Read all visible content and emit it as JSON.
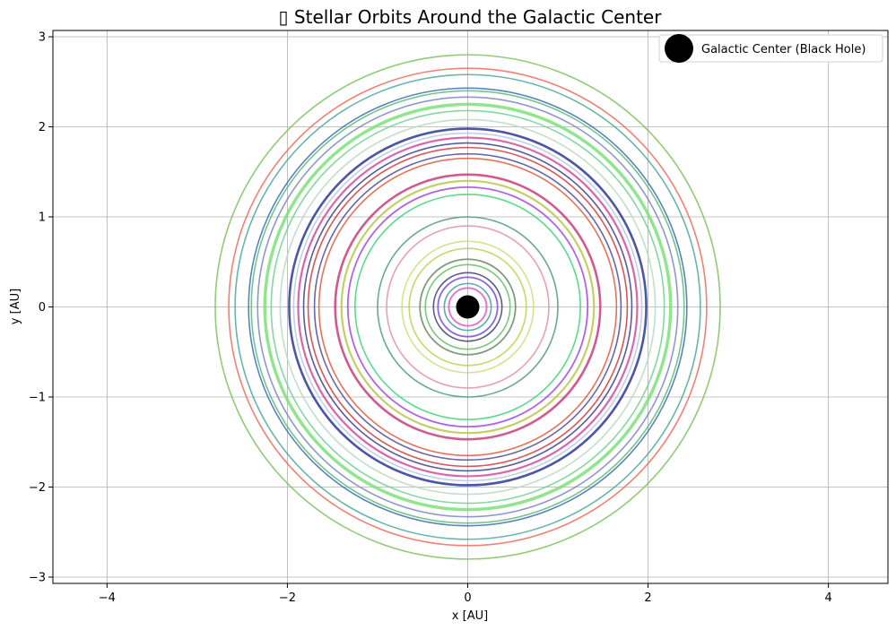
{
  "chart_data": {
    "type": "line",
    "title": "▯ Stellar Orbits Around the Galactic Center",
    "xlabel": "x [AU]",
    "ylabel": "y [AU]",
    "xlim": [
      -4.6,
      4.66
    ],
    "ylim": [
      -3.07,
      3.07
    ],
    "x_ticks": [
      -4,
      -2,
      0,
      2,
      4
    ],
    "y_ticks": [
      -3,
      -2,
      -1,
      0,
      1,
      2,
      3
    ],
    "x_tick_labels": [
      "−4",
      "−2",
      "0",
      "2",
      "4"
    ],
    "y_tick_labels": [
      "−3",
      "−2",
      "−1",
      "0",
      "1",
      "2",
      "3"
    ],
    "grid": true,
    "legend": {
      "location": "top-right",
      "entries": [
        {
          "label": "Galactic Center (Black Hole)",
          "marker": "circle",
          "color": "#000000"
        }
      ]
    },
    "center": {
      "name": "Galactic Center (Black Hole)",
      "x": 0,
      "y": 0,
      "color": "#000000"
    },
    "orbits": [
      {
        "radius": 2.8,
        "color": "#7cc35f",
        "width": 1.6
      },
      {
        "radius": 2.65,
        "color": "#ee6b5b",
        "width": 1.6
      },
      {
        "radius": 2.58,
        "color": "#4fa89a",
        "width": 1.6
      },
      {
        "radius": 2.43,
        "color": "#3a6fb0",
        "width": 1.6
      },
      {
        "radius": 2.4,
        "color": "#5fb87a",
        "width": 1.6
      },
      {
        "radius": 2.33,
        "color": "#7d86c0",
        "width": 1.6
      },
      {
        "radius": 2.25,
        "color": "#7ee07a",
        "width": 3.5
      },
      {
        "radius": 2.18,
        "color": "#6fd08f",
        "width": 1.6
      },
      {
        "radius": 2.08,
        "color": "#b8d8c0",
        "width": 1.6
      },
      {
        "radius": 1.98,
        "color": "#2c3a96",
        "width": 2.6
      },
      {
        "radius": 1.93,
        "color": "#b7c7e0",
        "width": 1.6
      },
      {
        "radius": 1.88,
        "color": "#d34a9b",
        "width": 2.2
      },
      {
        "radius": 1.82,
        "color": "#3a3f8a",
        "width": 1.6
      },
      {
        "radius": 1.77,
        "color": "#d13a3a",
        "width": 1.6
      },
      {
        "radius": 1.7,
        "color": "#4e4a9a",
        "width": 1.6
      },
      {
        "radius": 1.65,
        "color": "#e05a3a",
        "width": 1.6
      },
      {
        "radius": 1.47,
        "color": "#c8407a",
        "width": 2.6
      },
      {
        "radius": 1.4,
        "color": "#b8c84a",
        "width": 2.2
      },
      {
        "radius": 1.33,
        "color": "#a04ae0",
        "width": 1.8
      },
      {
        "radius": 1.25,
        "color": "#3cd47a",
        "width": 1.6
      },
      {
        "radius": 1.0,
        "color": "#4e9a7a",
        "width": 1.6
      },
      {
        "radius": 0.9,
        "color": "#e090a8",
        "width": 1.6
      },
      {
        "radius": 0.73,
        "color": "#c8e07a",
        "width": 1.6
      },
      {
        "radius": 0.65,
        "color": "#c0d050",
        "width": 1.6
      },
      {
        "radius": 0.53,
        "color": "#6a8a6a",
        "width": 1.8
      },
      {
        "radius": 0.47,
        "color": "#60c060",
        "width": 1.6
      },
      {
        "radius": 0.38,
        "color": "#3a3f6a",
        "width": 1.6
      },
      {
        "radius": 0.33,
        "color": "#7a4ae0",
        "width": 1.8
      },
      {
        "radius": 0.26,
        "color": "#3aa0a0",
        "width": 1.6
      },
      {
        "radius": 0.21,
        "color": "#e060c0",
        "width": 2.0
      }
    ]
  }
}
